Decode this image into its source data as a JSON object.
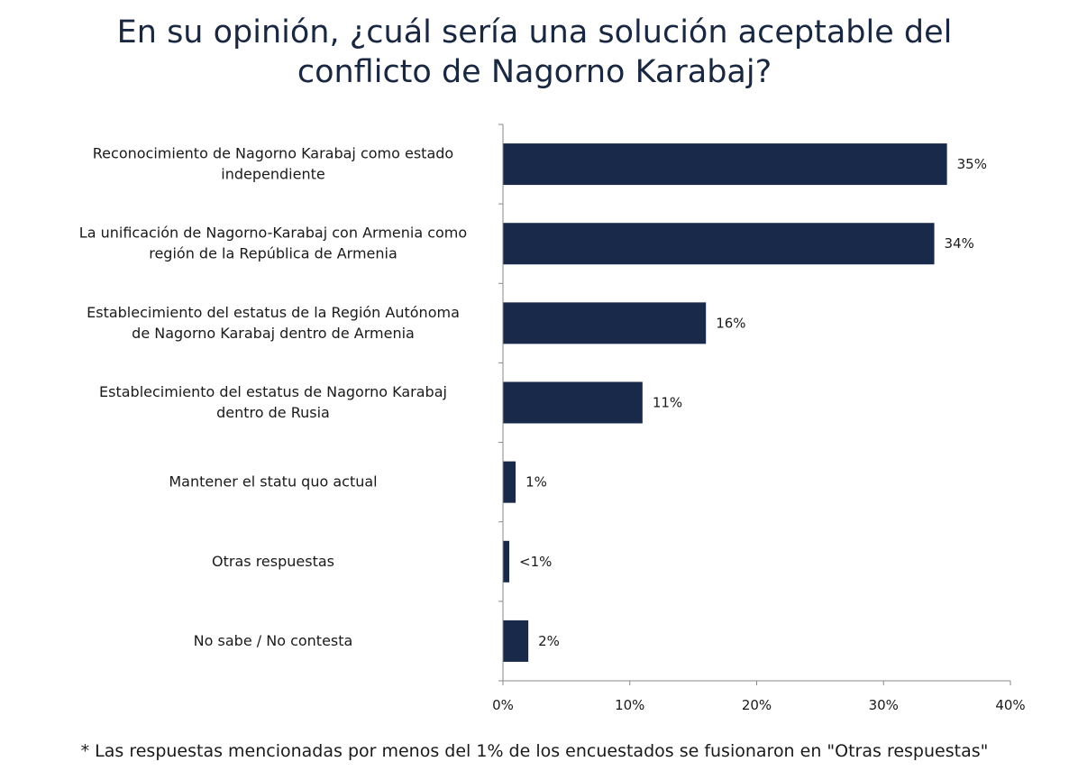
{
  "title_lines": [
    "En su opinión, ¿cuál sería una solución aceptable del",
    "conflicto de Nagorno Karabaj?"
  ],
  "footnote": "* Las respuestas mencionadas por menos del 1% de los encuestados se fusionaron en \"Otras respuestas\"",
  "colors": {
    "bar": "#18294a",
    "axis": "#8a8a8a"
  },
  "chart_data": {
    "type": "bar",
    "orientation": "horizontal",
    "title": "En su opinión, ¿cuál sería una solución aceptable del conflicto de Nagorno Karabaj?",
    "categories": [
      [
        "Reconocimiento de Nagorno Karabaj como estado",
        "independiente"
      ],
      [
        "La unificación de Nagorno-Karabaj con Armenia como",
        "región de la República de Armenia"
      ],
      [
        "Establecimiento del estatus de la Región Autónoma",
        "de Nagorno Karabaj dentro de Armenia"
      ],
      [
        "Establecimiento del estatus de Nagorno Karabaj",
        "dentro de Rusia"
      ],
      [
        "Mantener el statu quo actual"
      ],
      [
        "Otras respuestas"
      ],
      [
        "No sabe / No contesta"
      ]
    ],
    "values": [
      35,
      34,
      16,
      11,
      1,
      0.5,
      2
    ],
    "value_labels": [
      "35%",
      "34%",
      "16%",
      "11%",
      "1%",
      "<1%",
      "2%"
    ],
    "xlim": [
      0,
      40
    ],
    "xticks": [
      0,
      10,
      20,
      30,
      40
    ],
    "xtick_labels": [
      "0%",
      "10%",
      "20%",
      "30%",
      "40%"
    ],
    "grid": false,
    "legend": "none"
  }
}
